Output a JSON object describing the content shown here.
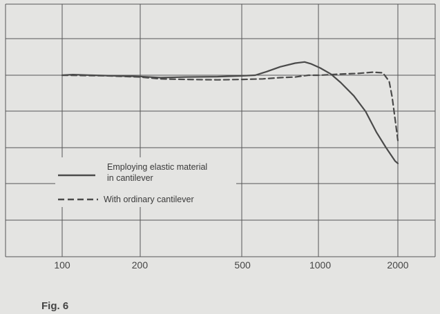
{
  "figure_label": "Fig. 6",
  "chart_data": {
    "type": "line",
    "title": "",
    "xlabel": "",
    "ylabel": "",
    "xscale": "log",
    "xlim": [
      100,
      2000
    ],
    "x_ticks": [
      100,
      200,
      500,
      1000,
      2000
    ],
    "x_tick_labels": [
      "100",
      "200",
      "500",
      "1000",
      "2000"
    ],
    "y_ticks": [],
    "grid": true,
    "legend_position": "lower-left",
    "series": [
      {
        "name": "Employing elastic material in cantilever",
        "label_lines": [
          "Employing elastic material",
          "in cantilever"
        ],
        "style": "solid",
        "color": "#4a4a4a",
        "x": [
          100,
          110,
          130,
          160,
          200,
          240,
          300,
          400,
          500,
          560,
          620,
          700,
          800,
          870,
          920,
          1000,
          1100,
          1200,
          1350,
          1500,
          1650,
          1800,
          1950,
          2000
        ],
        "y": [
          0.0,
          0.05,
          0.0,
          -0.05,
          -0.1,
          -0.2,
          -0.15,
          -0.12,
          -0.05,
          0.0,
          0.3,
          0.7,
          1.0,
          1.1,
          0.95,
          0.6,
          0.1,
          -0.6,
          -1.7,
          -3.0,
          -4.7,
          -6.0,
          -7.1,
          -7.3
        ]
      },
      {
        "name": "With ordinary cantilever",
        "label_lines": [
          "With ordinary cantilever"
        ],
        "style": "dashed",
        "color": "#4a4a4a",
        "x": [
          100,
          150,
          200,
          240,
          300,
          400,
          500,
          600,
          700,
          800,
          900,
          1000,
          1200,
          1400,
          1600,
          1750,
          1850,
          1900,
          1950,
          2000
        ],
        "y": [
          0.0,
          -0.05,
          -0.15,
          -0.3,
          -0.35,
          -0.38,
          -0.35,
          -0.3,
          -0.2,
          -0.15,
          0.0,
          0.0,
          0.1,
          0.15,
          0.25,
          0.2,
          -0.5,
          -1.8,
          -3.6,
          -5.4
        ]
      }
    ]
  }
}
